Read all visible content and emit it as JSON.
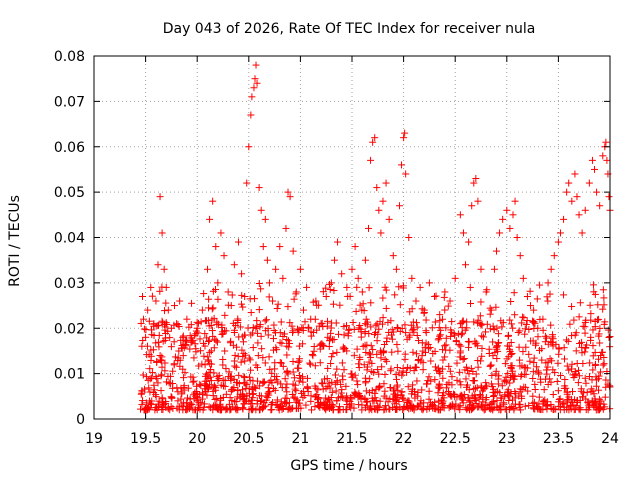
{
  "chart_data": {
    "type": "scatter",
    "title": "Day 043 of 2026, Rate Of TEC Index for receiver nula",
    "xlabel": "GPS time / hours",
    "ylabel": "ROTI / TECUs",
    "xlim": [
      19,
      24
    ],
    "ylim": [
      0,
      0.08
    ],
    "x_ticks": [
      19,
      19.5,
      20,
      20.5,
      21,
      21.5,
      22,
      22.5,
      23,
      23.5,
      24
    ],
    "x_tick_labels": [
      "19",
      "19.5",
      "20",
      "20.5",
      "21",
      "21.5",
      "22",
      "22.5",
      "23",
      "23.5",
      "24"
    ],
    "y_ticks": [
      0,
      0.01,
      0.02,
      0.03,
      0.04,
      0.05,
      0.06,
      0.07,
      0.08
    ],
    "y_tick_labels": [
      "0",
      "0.01",
      "0.02",
      "0.03",
      "0.04",
      "0.05",
      "0.06",
      "0.07",
      "0.08"
    ],
    "grid": true,
    "marker": "plus",
    "color": "#ff0000",
    "series": [
      {
        "points": [
          [
            19.47,
            0.027
          ],
          [
            19.48,
            0.022
          ],
          [
            19.5,
            0.018
          ],
          [
            19.52,
            0.024
          ],
          [
            19.55,
            0.029
          ],
          [
            19.58,
            0.021
          ],
          [
            19.6,
            0.026
          ],
          [
            19.62,
            0.034
          ],
          [
            19.64,
            0.049
          ],
          [
            19.66,
            0.041
          ],
          [
            19.68,
            0.033
          ],
          [
            19.7,
            0.029
          ],
          [
            19.72,
            0.024
          ],
          [
            19.75,
            0.02
          ],
          [
            19.78,
            0.025
          ],
          [
            19.8,
            0.021
          ],
          [
            19.83,
            0.026
          ],
          [
            19.86,
            0.018
          ],
          [
            19.9,
            0.022
          ],
          [
            19.95,
            0.017
          ],
          [
            20.0,
            0.02
          ],
          [
            20.05,
            0.024
          ],
          [
            20.1,
            0.033
          ],
          [
            20.12,
            0.044
          ],
          [
            20.15,
            0.048
          ],
          [
            20.18,
            0.038
          ],
          [
            20.2,
            0.03
          ],
          [
            20.23,
            0.041
          ],
          [
            20.26,
            0.036
          ],
          [
            20.3,
            0.028
          ],
          [
            20.33,
            0.025
          ],
          [
            20.36,
            0.034
          ],
          [
            20.4,
            0.039
          ],
          [
            20.43,
            0.032
          ],
          [
            20.46,
            0.027
          ],
          [
            20.48,
            0.052
          ],
          [
            20.5,
            0.06
          ],
          [
            20.52,
            0.067
          ],
          [
            20.53,
            0.071
          ],
          [
            20.55,
            0.073
          ],
          [
            20.56,
            0.075
          ],
          [
            20.57,
            0.078
          ],
          [
            20.58,
            0.074
          ],
          [
            20.6,
            0.051
          ],
          [
            20.62,
            0.046
          ],
          [
            20.64,
            0.038
          ],
          [
            20.66,
            0.044
          ],
          [
            20.68,
            0.035
          ],
          [
            20.7,
            0.03
          ],
          [
            20.73,
            0.026
          ],
          [
            20.76,
            0.033
          ],
          [
            20.8,
            0.038
          ],
          [
            20.83,
            0.031
          ],
          [
            20.86,
            0.042
          ],
          [
            20.88,
            0.05
          ],
          [
            20.9,
            0.049
          ],
          [
            20.93,
            0.037
          ],
          [
            20.96,
            0.028
          ],
          [
            21.0,
            0.033
          ],
          [
            21.03,
            0.024
          ],
          [
            21.06,
            0.029
          ],
          [
            21.1,
            0.022
          ],
          [
            21.15,
            0.026
          ],
          [
            21.2,
            0.021
          ],
          [
            21.25,
            0.027
          ],
          [
            21.3,
            0.03
          ],
          [
            21.33,
            0.035
          ],
          [
            21.36,
            0.039
          ],
          [
            21.4,
            0.032
          ],
          [
            21.45,
            0.029
          ],
          [
            21.5,
            0.033
          ],
          [
            21.53,
            0.038
          ],
          [
            21.56,
            0.031
          ],
          [
            21.6,
            0.028
          ],
          [
            21.63,
            0.035
          ],
          [
            21.66,
            0.042
          ],
          [
            21.68,
            0.057
          ],
          [
            21.7,
            0.061
          ],
          [
            21.72,
            0.062
          ],
          [
            21.74,
            0.051
          ],
          [
            21.76,
            0.046
          ],
          [
            21.78,
            0.041
          ],
          [
            21.8,
            0.048
          ],
          [
            21.83,
            0.052
          ],
          [
            21.86,
            0.044
          ],
          [
            21.9,
            0.036
          ],
          [
            21.93,
            0.033
          ],
          [
            21.96,
            0.047
          ],
          [
            21.98,
            0.056
          ],
          [
            22.0,
            0.062
          ],
          [
            22.01,
            0.063
          ],
          [
            22.02,
            0.054
          ],
          [
            22.05,
            0.04
          ],
          [
            22.08,
            0.031
          ],
          [
            22.12,
            0.026
          ],
          [
            22.16,
            0.029
          ],
          [
            22.2,
            0.024
          ],
          [
            22.25,
            0.03
          ],
          [
            22.3,
            0.027
          ],
          [
            22.35,
            0.023
          ],
          [
            22.4,
            0.028
          ],
          [
            22.45,
            0.026
          ],
          [
            22.5,
            0.031
          ],
          [
            22.55,
            0.045
          ],
          [
            22.58,
            0.041
          ],
          [
            22.6,
            0.034
          ],
          [
            22.63,
            0.039
          ],
          [
            22.66,
            0.047
          ],
          [
            22.68,
            0.052
          ],
          [
            22.7,
            0.053
          ],
          [
            22.72,
            0.048
          ],
          [
            22.75,
            0.033
          ],
          [
            22.8,
            0.028
          ],
          [
            22.85,
            0.024
          ],
          [
            22.88,
            0.033
          ],
          [
            22.9,
            0.037
          ],
          [
            22.93,
            0.041
          ],
          [
            22.96,
            0.044
          ],
          [
            23.0,
            0.046
          ],
          [
            23.03,
            0.042
          ],
          [
            23.06,
            0.045
          ],
          [
            23.08,
            0.048
          ],
          [
            23.1,
            0.04
          ],
          [
            23.13,
            0.036
          ],
          [
            23.16,
            0.031
          ],
          [
            23.2,
            0.027
          ],
          [
            23.23,
            0.025
          ],
          [
            23.26,
            0.024
          ],
          [
            23.3,
            0.02
          ],
          [
            23.35,
            0.022
          ],
          [
            23.4,
            0.03
          ],
          [
            23.43,
            0.033
          ],
          [
            23.46,
            0.036
          ],
          [
            23.5,
            0.039
          ],
          [
            23.52,
            0.041
          ],
          [
            23.55,
            0.044
          ],
          [
            23.58,
            0.05
          ],
          [
            23.6,
            0.052
          ],
          [
            23.63,
            0.048
          ],
          [
            23.66,
            0.054
          ],
          [
            23.68,
            0.049
          ],
          [
            23.7,
            0.045
          ],
          [
            23.73,
            0.041
          ],
          [
            23.76,
            0.046
          ],
          [
            23.8,
            0.052
          ],
          [
            23.83,
            0.057
          ],
          [
            23.85,
            0.055
          ],
          [
            23.87,
            0.05
          ],
          [
            23.9,
            0.047
          ],
          [
            23.93,
            0.058
          ],
          [
            23.95,
            0.06
          ],
          [
            23.96,
            0.061
          ],
          [
            23.97,
            0.057
          ],
          [
            23.98,
            0.054
          ],
          [
            23.99,
            0.049
          ],
          [
            24.0,
            0.046
          ]
        ]
      }
    ]
  }
}
